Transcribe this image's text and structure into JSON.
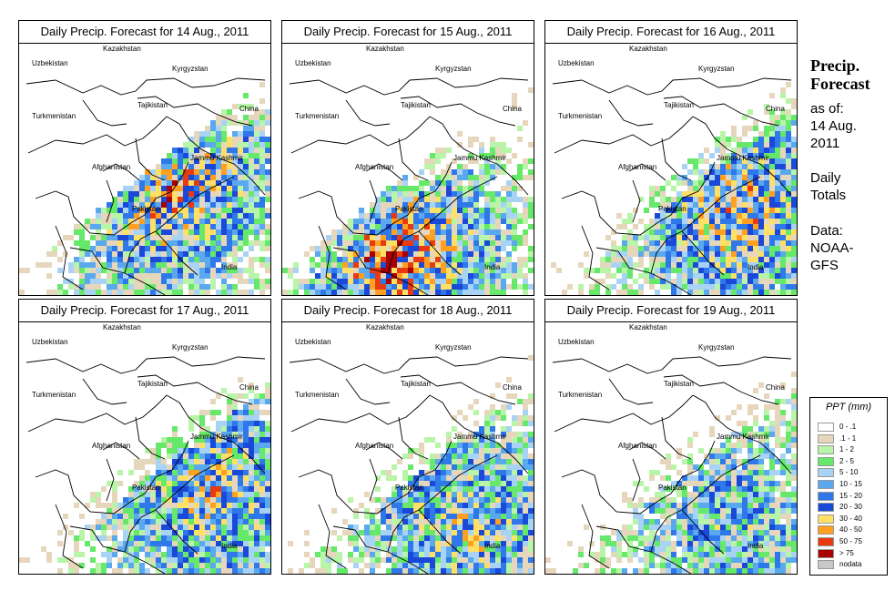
{
  "panels": [
    {
      "title": "Daily Precip. Forecast for  14 Aug., 2011",
      "seed": 11,
      "intensity": 1.0,
      "focus": "center"
    },
    {
      "title": "Daily Precip. Forecast for  15 Aug., 2011",
      "seed": 23,
      "intensity": 0.95,
      "focus": "south"
    },
    {
      "title": "Daily Precip. Forecast for  16 Aug., 2011",
      "seed": 37,
      "intensity": 0.8,
      "focus": "east"
    },
    {
      "title": "Daily Precip. Forecast for  17 Aug., 2011",
      "seed": 41,
      "intensity": 0.75,
      "focus": "east"
    },
    {
      "title": "Daily Precip. Forecast for  18 Aug., 2011",
      "seed": 53,
      "intensity": 0.7,
      "focus": "southeast"
    },
    {
      "title": "Daily Precip. Forecast for  19 Aug., 2011",
      "seed": 67,
      "intensity": 0.55,
      "focus": "southeast"
    }
  ],
  "map_labels": {
    "kazakhstan": "Kazakhstan",
    "uzbekistan": "Uzbekistan",
    "kyrgyzstan": "Kyrgyzstan",
    "tajikistan": "Tajikistan",
    "china": "China",
    "turkmenistan": "Turkmenistan",
    "afghanistan": "Afghanistan",
    "jammu_kashmir": "Jammu Kashmir",
    "pakistan": "Pakistan",
    "india": "India"
  },
  "side": {
    "title_line1": "Precip.",
    "title_line2": "Forecast",
    "asof_line1": "as of:",
    "asof_line2": "14 Aug.",
    "asof_line3": "2011",
    "totals_line1": "Daily",
    "totals_line2": "Totals",
    "data_line1": "Data:",
    "data_line2": "NOAA-",
    "data_line3": "GFS"
  },
  "legend": {
    "title": "PPT (mm)",
    "items": [
      {
        "label": "0 - .1",
        "color": "#ffffff"
      },
      {
        "label": ".1 - 1",
        "color": "#e6d7bc"
      },
      {
        "label": "1 - 2",
        "color": "#b8f5a8"
      },
      {
        "label": "2 - 5",
        "color": "#66e86a"
      },
      {
        "label": "5 - 10",
        "color": "#a9d3f5"
      },
      {
        "label": "10 - 15",
        "color": "#5aa8ee"
      },
      {
        "label": "15 - 20",
        "color": "#2f78ea"
      },
      {
        "label": "20 - 30",
        "color": "#1a48d8"
      },
      {
        "label": "30 - 40",
        "color": "#ffe066"
      },
      {
        "label": "40 - 50",
        "color": "#ffa020"
      },
      {
        "label": "50 - 75",
        "color": "#e83a10"
      },
      {
        "label": "> 75",
        "color": "#a80000"
      },
      {
        "label": "nodata",
        "color": "#c8c8c8"
      }
    ]
  }
}
